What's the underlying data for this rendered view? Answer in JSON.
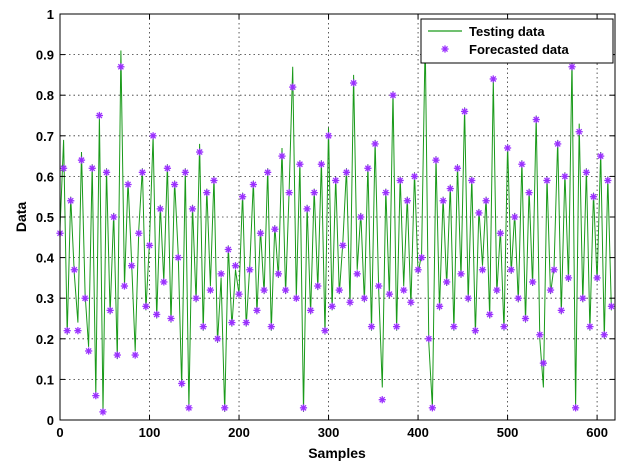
{
  "chart_data": {
    "type": "line",
    "xlabel": "Samples",
    "ylabel": "Data",
    "xlim": [
      0,
      620
    ],
    "ylim": [
      0,
      1
    ],
    "xticks": [
      0,
      100,
      200,
      300,
      400,
      500,
      600
    ],
    "yticks": [
      0,
      0.1,
      0.2,
      0.3,
      0.4,
      0.5,
      0.6,
      0.7,
      0.8,
      0.9,
      1
    ],
    "grid": true,
    "legend_position": "top-right",
    "series": [
      {
        "name": "Testing data",
        "style": "line",
        "color": "#1a9a1a"
      },
      {
        "name": "Forecasted data",
        "style": "asterisk-markers",
        "color": "#9b30ff"
      }
    ],
    "x": [
      0,
      4,
      8,
      12,
      16,
      20,
      24,
      28,
      32,
      36,
      40,
      44,
      48,
      52,
      56,
      60,
      64,
      68,
      72,
      76,
      80,
      84,
      88,
      92,
      96,
      100,
      104,
      108,
      112,
      116,
      120,
      124,
      128,
      132,
      136,
      140,
      144,
      148,
      152,
      156,
      160,
      164,
      168,
      172,
      176,
      180,
      184,
      188,
      192,
      196,
      200,
      204,
      208,
      212,
      216,
      220,
      224,
      228,
      232,
      236,
      240,
      244,
      248,
      252,
      256,
      260,
      264,
      268,
      272,
      276,
      280,
      284,
      288,
      292,
      296,
      300,
      304,
      308,
      312,
      316,
      320,
      324,
      328,
      332,
      336,
      340,
      344,
      348,
      352,
      356,
      360,
      364,
      368,
      372,
      376,
      380,
      384,
      388,
      392,
      396,
      400,
      404,
      408,
      412,
      416,
      420,
      424,
      428,
      432,
      436,
      440,
      444,
      448,
      452,
      456,
      460,
      464,
      468,
      472,
      476,
      480,
      484,
      488,
      492,
      496,
      500,
      504,
      508,
      512,
      516,
      520,
      524,
      528,
      532,
      536,
      540,
      544,
      548,
      552,
      556,
      560,
      564,
      568,
      572,
      576,
      580,
      584,
      588,
      592,
      596,
      600,
      604,
      608,
      612,
      616
    ],
    "testing_values": [
      0.47,
      0.69,
      0.21,
      0.55,
      0.36,
      0.24,
      0.66,
      0.31,
      0.18,
      0.63,
      0.06,
      0.75,
      0.02,
      0.62,
      0.26,
      0.51,
      0.15,
      0.91,
      0.33,
      0.59,
      0.39,
      0.17,
      0.47,
      0.62,
      0.27,
      0.44,
      0.7,
      0.25,
      0.53,
      0.34,
      0.63,
      0.24,
      0.59,
      0.41,
      0.08,
      0.62,
      0.03,
      0.53,
      0.29,
      0.68,
      0.22,
      0.57,
      0.33,
      0.6,
      0.19,
      0.35,
      0.02,
      0.43,
      0.23,
      0.37,
      0.31,
      0.56,
      0.23,
      0.38,
      0.59,
      0.26,
      0.47,
      0.31,
      0.62,
      0.22,
      0.48,
      0.35,
      0.67,
      0.31,
      0.57,
      0.87,
      0.3,
      0.64,
      0.02,
      0.53,
      0.26,
      0.57,
      0.32,
      0.64,
      0.21,
      0.72,
      0.27,
      0.6,
      0.31,
      0.44,
      0.62,
      0.28,
      0.85,
      0.37,
      0.51,
      0.29,
      0.63,
      0.22,
      0.69,
      0.32,
      0.08,
      0.57,
      0.3,
      0.81,
      0.22,
      0.6,
      0.33,
      0.55,
      0.28,
      0.61,
      0.36,
      0.41,
      0.94,
      0.19,
      0.03,
      0.65,
      0.27,
      0.55,
      0.33,
      0.58,
      0.22,
      0.63,
      0.35,
      0.77,
      0.29,
      0.6,
      0.21,
      0.52,
      0.38,
      0.55,
      0.25,
      0.84,
      0.31,
      0.47,
      0.22,
      0.68,
      0.36,
      0.51,
      0.29,
      0.64,
      0.24,
      0.57,
      0.33,
      0.75,
      0.2,
      0.08,
      0.6,
      0.31,
      0.38,
      0.69,
      0.26,
      0.61,
      0.34,
      0.89,
      0.03,
      0.73,
      0.29,
      0.62,
      0.22,
      0.56,
      0.34,
      0.66,
      0.2,
      0.6,
      0.27
    ],
    "forecasted_values": [
      0.46,
      0.62,
      0.22,
      0.54,
      0.37,
      0.22,
      0.64,
      0.3,
      0.17,
      0.62,
      0.06,
      0.75,
      0.02,
      0.61,
      0.27,
      0.5,
      0.16,
      0.87,
      0.33,
      0.58,
      0.38,
      0.16,
      0.46,
      0.61,
      0.28,
      0.43,
      0.7,
      0.26,
      0.52,
      0.34,
      0.62,
      0.25,
      0.58,
      0.4,
      0.09,
      0.61,
      0.03,
      0.52,
      0.3,
      0.66,
      0.23,
      0.56,
      0.32,
      0.59,
      0.2,
      0.36,
      0.03,
      0.42,
      0.24,
      0.38,
      0.31,
      0.55,
      0.24,
      0.37,
      0.58,
      0.27,
      0.46,
      0.32,
      0.61,
      0.23,
      0.47,
      0.36,
      0.65,
      0.32,
      0.56,
      0.82,
      0.3,
      0.63,
      0.03,
      0.52,
      0.27,
      0.56,
      0.33,
      0.63,
      0.22,
      0.7,
      0.28,
      0.59,
      0.32,
      0.43,
      0.61,
      0.29,
      0.83,
      0.36,
      0.5,
      0.3,
      0.62,
      0.23,
      0.68,
      0.33,
      0.05,
      0.56,
      0.31,
      0.8,
      0.23,
      0.59,
      0.32,
      0.54,
      0.29,
      0.6,
      0.37,
      0.4,
      0.9,
      0.2,
      0.03,
      0.64,
      0.28,
      0.54,
      0.34,
      0.57,
      0.23,
      0.62,
      0.36,
      0.76,
      0.3,
      0.59,
      0.22,
      0.51,
      0.37,
      0.54,
      0.26,
      0.84,
      0.32,
      0.46,
      0.23,
      0.67,
      0.37,
      0.5,
      0.3,
      0.63,
      0.25,
      0.56,
      0.34,
      0.74,
      0.21,
      0.14,
      0.59,
      0.32,
      0.37,
      0.68,
      0.27,
      0.6,
      0.35,
      0.87,
      0.03,
      0.71,
      0.3,
      0.61,
      0.23,
      0.55,
      0.35,
      0.65,
      0.21,
      0.59,
      0.28
    ]
  }
}
